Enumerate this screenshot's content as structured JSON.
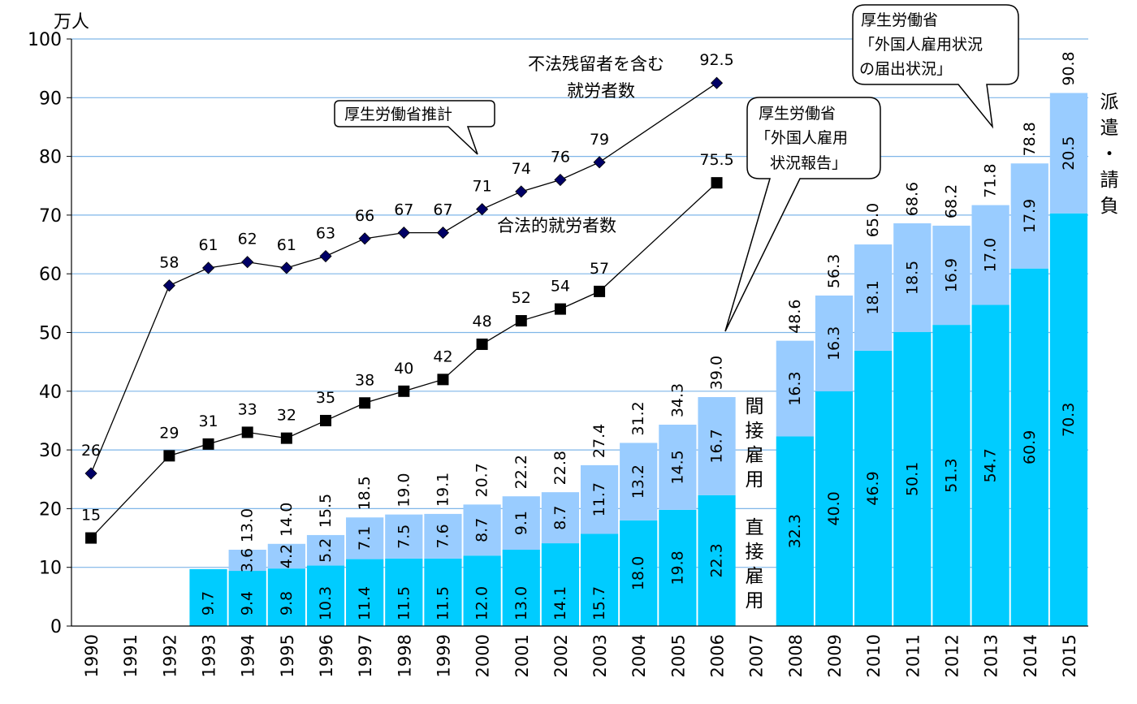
{
  "chart_data": {
    "type": "bar",
    "unit_label": "万人",
    "ylim": [
      0,
      100
    ],
    "yticks": [
      0,
      10,
      20,
      30,
      40,
      50,
      60,
      70,
      80,
      90,
      100
    ],
    "categories": [
      "1990",
      "1991",
      "1992",
      "1993",
      "1994",
      "1995",
      "1996",
      "1997",
      "1998",
      "1999",
      "2000",
      "2001",
      "2002",
      "2003",
      "2004",
      "2005",
      "2006",
      "2007",
      "2008",
      "2009",
      "2010",
      "2011",
      "2012",
      "2013",
      "2014",
      "2015"
    ],
    "bar_totals": [
      null,
      null,
      null,
      null,
      "13.0",
      "14.0",
      "15.5",
      "18.5",
      "19.0",
      "19.1",
      "20.7",
      "22.2",
      "22.8",
      "27.4",
      "31.2",
      "34.3",
      "39.0",
      null,
      "48.6",
      "56.3",
      "65.0",
      "68.6",
      "68.2",
      "71.8",
      "78.8",
      "90.8"
    ],
    "series": [
      {
        "name": "直接雇用",
        "color": "#00ccff",
        "values": [
          null,
          null,
          null,
          9.7,
          9.4,
          9.8,
          10.3,
          11.4,
          11.5,
          11.5,
          12.0,
          13.0,
          14.1,
          15.7,
          18.0,
          19.8,
          22.3,
          null,
          32.3,
          40.0,
          46.9,
          50.1,
          51.3,
          54.7,
          60.9,
          70.3
        ],
        "labels": [
          null,
          null,
          null,
          "9.7",
          "9.4",
          "9.8",
          "10.3",
          "11.4",
          "11.5",
          "11.5",
          "12.0",
          "13.0",
          "14.1",
          "15.7",
          "18.0",
          "19.8",
          "22.3",
          null,
          "32.3",
          "40.0",
          "46.9",
          "50.1",
          "51.3",
          "54.7",
          "60.9",
          "70.3"
        ]
      },
      {
        "name": "間接雇用",
        "color": "#99ccff",
        "values": [
          null,
          null,
          null,
          null,
          3.6,
          4.2,
          5.2,
          7.1,
          7.5,
          7.6,
          8.7,
          9.1,
          8.7,
          11.7,
          13.2,
          14.5,
          16.7,
          null,
          16.3,
          16.3,
          18.1,
          18.5,
          16.9,
          17.0,
          17.9,
          20.5
        ],
        "labels": [
          null,
          null,
          null,
          null,
          "3.6",
          "4.2",
          "5.2",
          "7.1",
          "7.5",
          "7.6",
          "8.7",
          "9.1",
          "8.7",
          "11.7",
          "13.2",
          "14.5",
          "16.7",
          null,
          "16.3",
          "16.3",
          "18.1",
          "18.5",
          "16.9",
          "17.0",
          "17.9",
          "20.5"
        ]
      }
    ],
    "lines": [
      {
        "name": "不法残留者を含む就労者数",
        "marker": "diamond",
        "color": "#000066",
        "points": [
          {
            "x": "1990",
            "y": 26,
            "label": "26"
          },
          {
            "x": "1992",
            "y": 58,
            "label": "58"
          },
          {
            "x": "1993",
            "y": 61,
            "label": "61"
          },
          {
            "x": "1994",
            "y": 62,
            "label": "62"
          },
          {
            "x": "1995",
            "y": 61,
            "label": "61"
          },
          {
            "x": "1996",
            "y": 63,
            "label": "63"
          },
          {
            "x": "1997",
            "y": 66,
            "label": "66"
          },
          {
            "x": "1998",
            "y": 67,
            "label": "67"
          },
          {
            "x": "1999",
            "y": 67,
            "label": "67"
          },
          {
            "x": "2000",
            "y": 71,
            "label": "71"
          },
          {
            "x": "2001",
            "y": 74,
            "label": "74"
          },
          {
            "x": "2002",
            "y": 76,
            "label": "76"
          },
          {
            "x": "2003",
            "y": 79,
            "label": "79"
          },
          {
            "x": "2006",
            "y": 92.5,
            "label": "92.5"
          }
        ]
      },
      {
        "name": "合法的就労者数",
        "marker": "square",
        "color": "#000000",
        "points": [
          {
            "x": "1990",
            "y": 15,
            "label": "15"
          },
          {
            "x": "1992",
            "y": 29,
            "label": "29"
          },
          {
            "x": "1993",
            "y": 31,
            "label": "31"
          },
          {
            "x": "1994",
            "y": 33,
            "label": "33"
          },
          {
            "x": "1995",
            "y": 32,
            "label": "32"
          },
          {
            "x": "1996",
            "y": 35,
            "label": "35"
          },
          {
            "x": "1997",
            "y": 38,
            "label": "38"
          },
          {
            "x": "1998",
            "y": 40,
            "label": "40"
          },
          {
            "x": "1999",
            "y": 42,
            "label": "42"
          },
          {
            "x": "2000",
            "y": 48,
            "label": "48"
          },
          {
            "x": "2001",
            "y": 52,
            "label": "52"
          },
          {
            "x": "2002",
            "y": 54,
            "label": "54"
          },
          {
            "x": "2003",
            "y": 57,
            "label": "57"
          },
          {
            "x": "2006",
            "y": 75.5,
            "label": "75.5"
          }
        ]
      }
    ],
    "annotations": {
      "line1_name_l1": "不法残留者を含む",
      "line1_name_l2": "就労者数",
      "line2_name": "合法的就労者数",
      "callout1": "厚生労働省推計",
      "callout2_l1": "厚生労働省",
      "callout2_l2": "「外国人雇用",
      "callout2_l3": "状況報告」",
      "callout3_l1": "厚生労働省",
      "callout3_l2": "「外国人雇用状況",
      "callout3_l3": "の届出状況」",
      "indirect_label": [
        "間",
        "接",
        "雇",
        "用"
      ],
      "direct_label": [
        "直",
        "接",
        "雇",
        "用"
      ],
      "dispatch_label": [
        "派",
        "遣",
        "・",
        "請",
        "負"
      ]
    },
    "grid": true,
    "legend": "none"
  }
}
